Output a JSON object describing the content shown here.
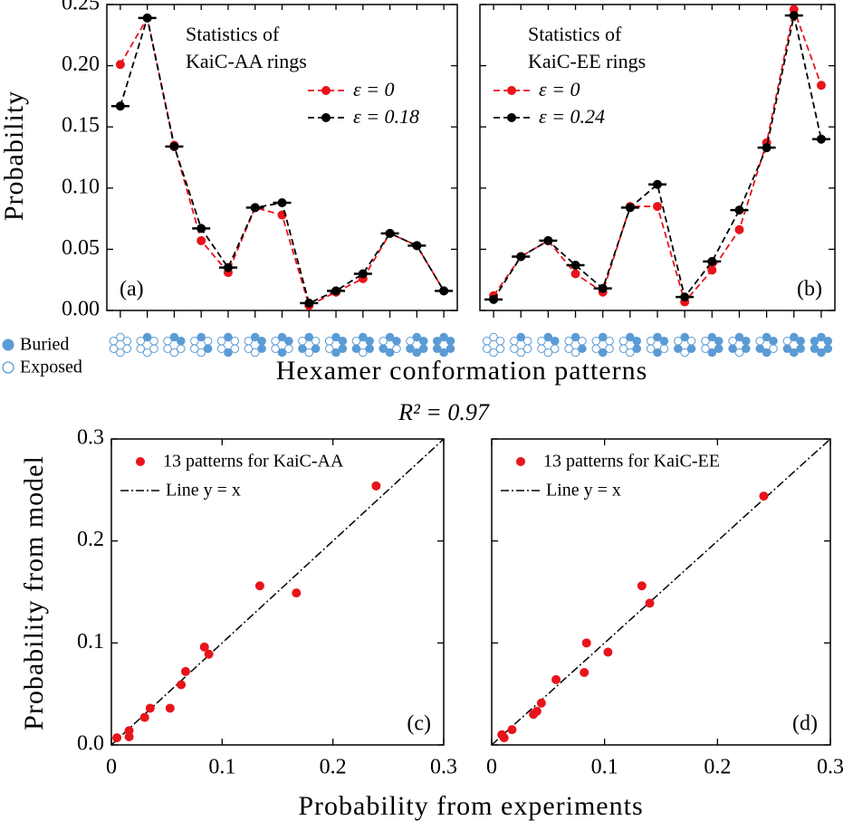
{
  "figure": {
    "top_xlabel": "Hexamer conformation patterns",
    "top_ylabel": "Probability",
    "bottom_title": "R² = 0.97",
    "bottom_xlabel": "Probability from experiments",
    "bottom_ylabel": "Probability from model",
    "legend_buried": "Buried",
    "legend_exposed": "Exposed"
  },
  "chart_data": [
    {
      "type": "line",
      "panel_label": "(a)",
      "note": [
        "Statistics of",
        "KaiC-AA rings"
      ],
      "legend_loc": "upper right",
      "categories": [
        null,
        null,
        null,
        null,
        null,
        null,
        null,
        null,
        null,
        null,
        null,
        null,
        null
      ],
      "ylim": [
        0,
        0.25
      ],
      "yticks": [
        {
          "value": 0,
          "label": "0.00"
        },
        {
          "value": 0.05,
          "label": "0.05"
        },
        {
          "value": 0.1,
          "label": "0.10"
        },
        {
          "value": 0.15,
          "label": "0.15"
        },
        {
          "value": 0.2,
          "label": "0.20"
        },
        {
          "value": 0.25,
          "label": "0.25"
        }
      ],
      "series": [
        {
          "name": "ε = 0",
          "color": "#e8141b",
          "values": [
            0.201,
            0.239,
            0.135,
            0.057,
            0.031,
            0.084,
            0.078,
            0.004,
            0.015,
            0.026,
            0.063,
            0.053,
            0.016
          ]
        },
        {
          "name": "ε = 0.18",
          "color": "#000000",
          "values": [
            0.167,
            0.239,
            0.134,
            0.067,
            0.035,
            0.084,
            0.088,
            0.006,
            0.016,
            0.03,
            0.063,
            0.053,
            0.016
          ]
        }
      ]
    },
    {
      "type": "line",
      "panel_label": "(b)",
      "note": [
        "Statistics of",
        "KaiC-EE rings"
      ],
      "legend_loc": "upper left",
      "categories": [
        null,
        null,
        null,
        null,
        null,
        null,
        null,
        null,
        null,
        null,
        null,
        null,
        null
      ],
      "ylim": [
        0,
        0.25
      ],
      "series": [
        {
          "name": "ε = 0",
          "color": "#e8141b",
          "values": [
            0.012,
            0.044,
            0.057,
            0.03,
            0.015,
            0.085,
            0.085,
            0.007,
            0.033,
            0.066,
            0.137,
            0.246,
            0.184
          ]
        },
        {
          "name": "ε = 0.24",
          "color": "#000000",
          "values": [
            0.009,
            0.044,
            0.057,
            0.037,
            0.018,
            0.084,
            0.103,
            0.011,
            0.04,
            0.082,
            0.133,
            0.241,
            0.14
          ]
        }
      ]
    },
    {
      "type": "scatter",
      "panel_label": "(c)",
      "reference_line": "Line y = x",
      "xlim": [
        0,
        0.3
      ],
      "ylim": [
        0,
        0.3
      ],
      "xticks": [
        {
          "value": 0,
          "label": "0"
        },
        0.1,
        0.2,
        0.3
      ],
      "yticks": [
        {
          "value": 0,
          "label": "0.0"
        },
        0.1,
        0.2,
        0.3
      ],
      "series": [
        {
          "name": "13 patterns for KaiC-AA",
          "color": "#e8141b",
          "x": [
            0.005,
            0.016,
            0.016,
            0.03,
            0.035,
            0.053,
            0.063,
            0.067,
            0.084,
            0.088,
            0.134,
            0.167,
            0.239
          ],
          "y": [
            0.007,
            0.008,
            0.014,
            0.027,
            0.036,
            0.036,
            0.059,
            0.072,
            0.096,
            0.089,
            0.156,
            0.149,
            0.254
          ]
        }
      ]
    },
    {
      "type": "scatter",
      "panel_label": "(d)",
      "reference_line": "Line y = x",
      "xlim": [
        0,
        0.3
      ],
      "ylim": [
        0,
        0.3
      ],
      "xticks": [
        {
          "value": 0,
          "label": "0"
        },
        0.1,
        0.2,
        0.3
      ],
      "series": [
        {
          "name": "13 patterns for KaiC-EE",
          "color": "#e8141b",
          "x": [
            0.009,
            0.011,
            0.018,
            0.037,
            0.04,
            0.044,
            0.057,
            0.082,
            0.084,
            0.103,
            0.133,
            0.14,
            0.241
          ],
          "y": [
            0.01,
            0.007,
            0.015,
            0.03,
            0.033,
            0.041,
            0.064,
            0.071,
            0.1,
            0.091,
            0.156,
            0.139,
            0.244
          ]
        }
      ]
    }
  ]
}
